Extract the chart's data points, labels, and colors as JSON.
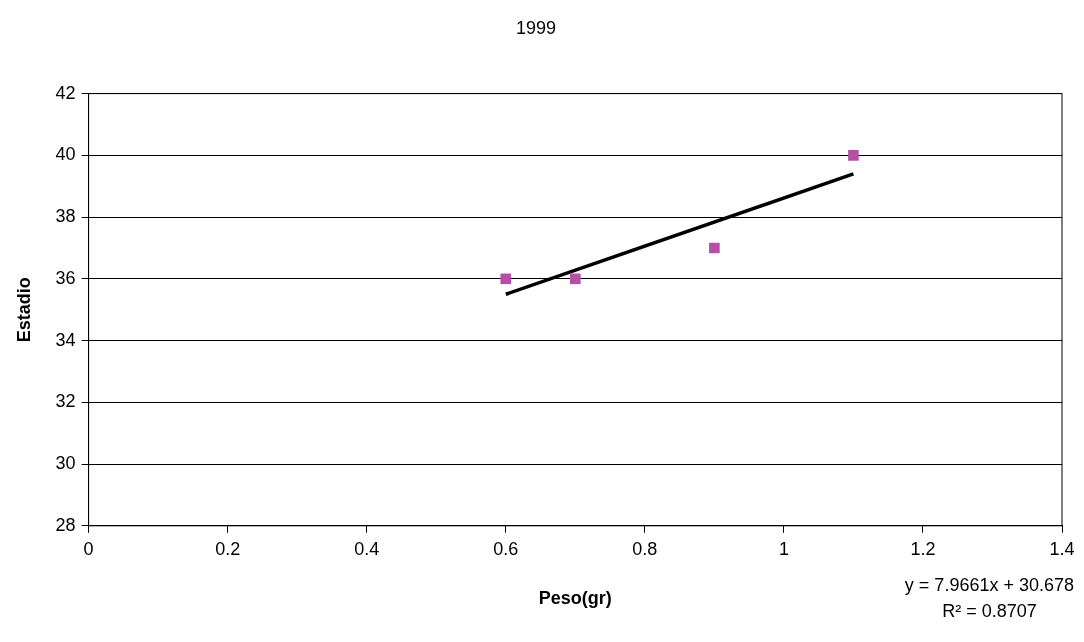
{
  "chart_data": {
    "type": "scatter",
    "title": "1999",
    "xlabel": "Peso(gr)",
    "ylabel": "Estadio",
    "x": [
      0.6,
      0.7,
      0.9,
      1.1
    ],
    "series": [
      {
        "type": "scatter",
        "color": "#b64fa6",
        "values": [
          36,
          36,
          37,
          40
        ]
      },
      {
        "type": "line",
        "color": "#000000",
        "marker": "none",
        "x": [
          0.6,
          1.1
        ],
        "values": [
          35.5,
          39.4
        ]
      }
    ],
    "xlim": [
      0,
      1.4
    ],
    "xticks": [
      0,
      0.2,
      0.4,
      0.6,
      0.8,
      1,
      1.2,
      1.4
    ],
    "ylim": [
      28,
      42
    ],
    "yticks": [
      28,
      30,
      32,
      34,
      36,
      38,
      40,
      42
    ],
    "grid": "y",
    "legend": false,
    "marker": "square",
    "annotations": [
      "y = 7.9661x + 30.678",
      "R² = 0.8707"
    ]
  }
}
